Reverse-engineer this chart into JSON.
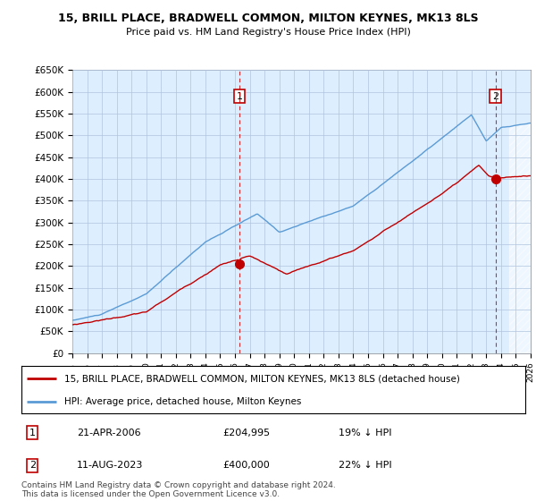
{
  "title": "15, BRILL PLACE, BRADWELL COMMON, MILTON KEYNES, MK13 8LS",
  "subtitle": "Price paid vs. HM Land Registry's House Price Index (HPI)",
  "hpi_color": "#5b9bd5",
  "hpi_fill_color": "#ddeeff",
  "price_color": "#c00000",
  "vline_color": "#c00000",
  "bg_color": "#ddeeff",
  "ylim": [
    0,
    650000
  ],
  "yticks": [
    0,
    50000,
    100000,
    150000,
    200000,
    250000,
    300000,
    350000,
    400000,
    450000,
    500000,
    550000,
    600000,
    650000
  ],
  "ytick_labels": [
    "£0",
    "£50K",
    "£100K",
    "£150K",
    "£200K",
    "£250K",
    "£300K",
    "£350K",
    "£400K",
    "£450K",
    "£500K",
    "£550K",
    "£600K",
    "£650K"
  ],
  "sale1_year": 2006.3,
  "sale1_price": 204995,
  "sale1_date": "21-APR-2006",
  "sale1_label": "£204,995",
  "sale1_pct": "19% ↓ HPI",
  "sale2_year": 2023.62,
  "sale2_price": 400000,
  "sale2_date": "11-AUG-2023",
  "sale2_label": "£400,000",
  "sale2_pct": "22% ↓ HPI",
  "legend_property": "15, BRILL PLACE, BRADWELL COMMON, MILTON KEYNES, MK13 8LS (detached house)",
  "legend_hpi": "HPI: Average price, detached house, Milton Keynes",
  "footer": "Contains HM Land Registry data © Crown copyright and database right 2024.\nThis data is licensed under the Open Government Licence v3.0.",
  "xstart": 1995,
  "xend": 2026
}
